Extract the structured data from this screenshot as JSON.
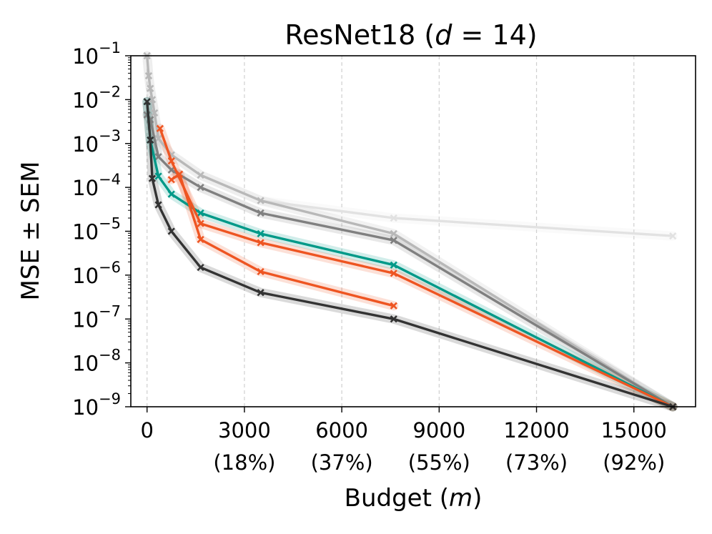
{
  "chart_data": {
    "type": "line",
    "title": "ResNet18 (d = 14)",
    "title_parts": {
      "prefix": "ResNet18 (",
      "var": "d",
      "suffix": " = 14)"
    },
    "xlabel": "Budget (m)",
    "xlabel_parts": {
      "prefix": "Budget (",
      "var": "m",
      "suffix": ")"
    },
    "ylabel": "MSE ± SEM",
    "xlim": [
      -500,
      16900
    ],
    "ylim_log10": [
      -9,
      -1
    ],
    "yscale": "log",
    "x_ticks": [
      {
        "value": 0,
        "label": "0",
        "sub": ""
      },
      {
        "value": 3000,
        "label": "3000",
        "sub": "(18%)"
      },
      {
        "value": 6000,
        "label": "6000",
        "sub": "(37%)"
      },
      {
        "value": 9000,
        "label": "9000",
        "sub": "(55%)"
      },
      {
        "value": 12000,
        "label": "12000",
        "sub": "(73%)"
      },
      {
        "value": 15000,
        "label": "15000",
        "sub": "(92%)"
      }
    ],
    "y_ticks": [
      {
        "exp": -1,
        "base": "10",
        "sup": "−1"
      },
      {
        "exp": -2,
        "base": "10",
        "sup": "−2"
      },
      {
        "exp": -3,
        "base": "10",
        "sup": "−3"
      },
      {
        "exp": -4,
        "base": "10",
        "sup": "−4"
      },
      {
        "exp": -5,
        "base": "10",
        "sup": "−5"
      },
      {
        "exp": -6,
        "base": "10",
        "sup": "−6"
      },
      {
        "exp": -7,
        "base": "10",
        "sup": "−7"
      },
      {
        "exp": -8,
        "base": "10",
        "sup": "−8"
      },
      {
        "exp": -9,
        "base": "10",
        "sup": "−9"
      }
    ],
    "grid": "vertical dashed",
    "series": [
      {
        "name": "light-gray",
        "color": "#e2e2e2",
        "x": [
          0,
          50,
          100,
          160,
          230,
          350,
          750,
          1650,
          3500,
          7600,
          16200
        ],
        "y": [
          0.1,
          0.035,
          0.018,
          0.01,
          0.005,
          0.0013,
          0.00055,
          0.00019,
          5e-05,
          2e-05,
          7.8e-06
        ]
      },
      {
        "name": "silver",
        "color": "#b8b8b8",
        "x": [
          0,
          50,
          100,
          160,
          230,
          350,
          750,
          1650,
          3500,
          7600,
          16200
        ],
        "y": [
          0.1,
          0.035,
          0.018,
          0.01,
          0.005,
          0.0013,
          0.00055,
          0.00019,
          5e-05,
          8.8e-06,
          1e-09
        ]
      },
      {
        "name": "gray",
        "color": "#808080",
        "x": [
          0,
          100,
          350,
          750,
          1650,
          3500,
          7600,
          16200
        ],
        "y": [
          0.0045,
          0.0035,
          0.0005,
          0.00025,
          0.0001,
          2.6e-05,
          6.2e-06,
          1e-09
        ]
      },
      {
        "name": "teal",
        "color": "#009988",
        "x": [
          0,
          100,
          350,
          750,
          1650,
          3500,
          7600,
          16200
        ],
        "y": [
          0.009,
          0.0012,
          0.00018,
          7e-05,
          2.6e-05,
          8.8e-06,
          1.7e-06,
          1e-09
        ]
      },
      {
        "name": "orange-a",
        "color": "#ee5522",
        "x": [
          400,
          750,
          1650,
          3500,
          7600,
          16200
        ],
        "y": [
          0.0022,
          0.0004,
          1.5e-05,
          5.5e-06,
          1.1e-06,
          1e-09
        ]
      },
      {
        "name": "orange-b",
        "color": "#ee5522",
        "x": [
          750,
          1000,
          1650,
          3500,
          7600
        ],
        "y": [
          0.00015,
          0.0002,
          6.5e-06,
          1.2e-06,
          2e-07
        ]
      },
      {
        "name": "dark-gray",
        "color": "#333333",
        "x": [
          0,
          100,
          160,
          350,
          750,
          1650,
          3500,
          7600,
          16200
        ],
        "y": [
          0.009,
          0.0012,
          0.00016,
          4e-05,
          1e-05,
          1.5e-06,
          4e-07,
          1e-07,
          1e-09
        ]
      }
    ]
  }
}
